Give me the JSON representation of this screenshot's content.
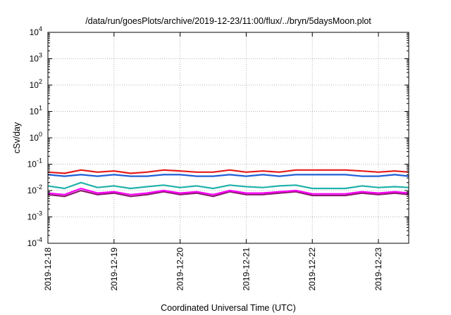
{
  "chart_data": {
    "type": "line",
    "title": "/data/run/goesPlots/archive/2019-12-23/11:00/flux/../bryn/5daysMoon.plot",
    "xlabel": "Coordinated Universal Time (UTC)",
    "ylabel": "cSv/day",
    "yscale": "log",
    "ylim": [
      0.0001,
      10000
    ],
    "xlim": [
      "2019-12-18T00:00",
      "2019-12-23T11:00"
    ],
    "grid": true,
    "y_ticks": [
      {
        "base": "10",
        "exp": "-4"
      },
      {
        "base": "10",
        "exp": "-3"
      },
      {
        "base": "10",
        "exp": "-2"
      },
      {
        "base": "10",
        "exp": "-1"
      },
      {
        "base": "10",
        "exp": "0"
      },
      {
        "base": "10",
        "exp": "1"
      },
      {
        "base": "10",
        "exp": "2"
      },
      {
        "base": "10",
        "exp": "3"
      },
      {
        "base": "10",
        "exp": "4"
      }
    ],
    "x_ticks": [
      "2019-12-18",
      "2019-12-19",
      "2019-12-20",
      "2019-12-21",
      "2019-12-22",
      "2019-12-23"
    ],
    "series": [
      {
        "color": "#e41a1c",
        "x": [
          "2019-12-18T00:00",
          "2019-12-18T06:00",
          "2019-12-18T12:00",
          "2019-12-18T18:00",
          "2019-12-19T00:00",
          "2019-12-19T06:00",
          "2019-12-19T12:00",
          "2019-12-19T18:00",
          "2019-12-20T00:00",
          "2019-12-20T06:00",
          "2019-12-20T12:00",
          "2019-12-20T18:00",
          "2019-12-21T00:00",
          "2019-12-21T06:00",
          "2019-12-21T12:00",
          "2019-12-21T18:00",
          "2019-12-22T00:00",
          "2019-12-22T06:00",
          "2019-12-22T12:00",
          "2019-12-22T18:00",
          "2019-12-23T00:00",
          "2019-12-23T06:00",
          "2019-12-23T11:00"
        ],
        "values": [
          0.05,
          0.045,
          0.06,
          0.05,
          0.055,
          0.045,
          0.05,
          0.06,
          0.055,
          0.05,
          0.05,
          0.06,
          0.05,
          0.055,
          0.05,
          0.06,
          0.06,
          0.06,
          0.06,
          0.055,
          0.05,
          0.055,
          0.05
        ]
      },
      {
        "color": "#1f5fd6",
        "x": [
          "2019-12-18T00:00",
          "2019-12-18T06:00",
          "2019-12-18T12:00",
          "2019-12-18T18:00",
          "2019-12-19T00:00",
          "2019-12-19T06:00",
          "2019-12-19T12:00",
          "2019-12-19T18:00",
          "2019-12-20T00:00",
          "2019-12-20T06:00",
          "2019-12-20T12:00",
          "2019-12-20T18:00",
          "2019-12-21T00:00",
          "2019-12-21T06:00",
          "2019-12-21T12:00",
          "2019-12-21T18:00",
          "2019-12-22T00:00",
          "2019-12-22T06:00",
          "2019-12-22T12:00",
          "2019-12-22T18:00",
          "2019-12-23T00:00",
          "2019-12-23T06:00",
          "2019-12-23T11:00"
        ],
        "values": [
          0.04,
          0.035,
          0.04,
          0.035,
          0.04,
          0.035,
          0.035,
          0.04,
          0.04,
          0.035,
          0.035,
          0.04,
          0.035,
          0.04,
          0.035,
          0.04,
          0.04,
          0.04,
          0.04,
          0.035,
          0.035,
          0.04,
          0.035
        ]
      },
      {
        "color": "#20b2aa",
        "x": [
          "2019-12-18T00:00",
          "2019-12-18T06:00",
          "2019-12-18T12:00",
          "2019-12-18T18:00",
          "2019-12-19T00:00",
          "2019-12-19T06:00",
          "2019-12-19T12:00",
          "2019-12-19T18:00",
          "2019-12-20T00:00",
          "2019-12-20T06:00",
          "2019-12-20T12:00",
          "2019-12-20T18:00",
          "2019-12-21T00:00",
          "2019-12-21T06:00",
          "2019-12-21T12:00",
          "2019-12-21T18:00",
          "2019-12-22T00:00",
          "2019-12-22T06:00",
          "2019-12-22T12:00",
          "2019-12-22T18:00",
          "2019-12-23T00:00",
          "2019-12-23T06:00",
          "2019-12-23T11:00"
        ],
        "values": [
          0.015,
          0.012,
          0.02,
          0.013,
          0.015,
          0.012,
          0.014,
          0.016,
          0.013,
          0.015,
          0.012,
          0.016,
          0.014,
          0.013,
          0.015,
          0.016,
          0.012,
          0.012,
          0.012,
          0.015,
          0.013,
          0.014,
          0.013
        ]
      },
      {
        "color": "#ff00ff",
        "x": [
          "2019-12-18T00:00",
          "2019-12-18T06:00",
          "2019-12-18T12:00",
          "2019-12-18T18:00",
          "2019-12-19T00:00",
          "2019-12-19T06:00",
          "2019-12-19T12:00",
          "2019-12-19T18:00",
          "2019-12-20T00:00",
          "2019-12-20T06:00",
          "2019-12-20T12:00",
          "2019-12-20T18:00",
          "2019-12-21T00:00",
          "2019-12-21T06:00",
          "2019-12-21T12:00",
          "2019-12-21T18:00",
          "2019-12-22T00:00",
          "2019-12-22T06:00",
          "2019-12-22T12:00",
          "2019-12-22T18:00",
          "2019-12-23T00:00",
          "2019-12-23T06:00",
          "2019-12-23T11:00"
        ],
        "values": [
          0.008,
          0.007,
          0.012,
          0.008,
          0.009,
          0.007,
          0.008,
          0.01,
          0.008,
          0.009,
          0.007,
          0.01,
          0.008,
          0.008,
          0.009,
          0.01,
          0.0075,
          0.0075,
          0.0075,
          0.009,
          0.008,
          0.009,
          0.008
        ]
      },
      {
        "color": "#8b1a6b",
        "x": [
          "2019-12-18T00:00",
          "2019-12-18T06:00",
          "2019-12-18T12:00",
          "2019-12-18T18:00",
          "2019-12-19T00:00",
          "2019-12-19T06:00",
          "2019-12-19T12:00",
          "2019-12-19T18:00",
          "2019-12-20T00:00",
          "2019-12-20T06:00",
          "2019-12-20T12:00",
          "2019-12-20T18:00",
          "2019-12-21T00:00",
          "2019-12-21T06:00",
          "2019-12-21T12:00",
          "2019-12-21T18:00",
          "2019-12-22T00:00",
          "2019-12-22T06:00",
          "2019-12-22T12:00",
          "2019-12-22T18:00",
          "2019-12-23T00:00",
          "2019-12-23T06:00",
          "2019-12-23T11:00"
        ],
        "values": [
          0.007,
          0.006,
          0.01,
          0.007,
          0.008,
          0.006,
          0.007,
          0.009,
          0.007,
          0.008,
          0.006,
          0.009,
          0.007,
          0.007,
          0.008,
          0.009,
          0.0065,
          0.0065,
          0.0065,
          0.008,
          0.007,
          0.008,
          0.007
        ]
      }
    ]
  }
}
